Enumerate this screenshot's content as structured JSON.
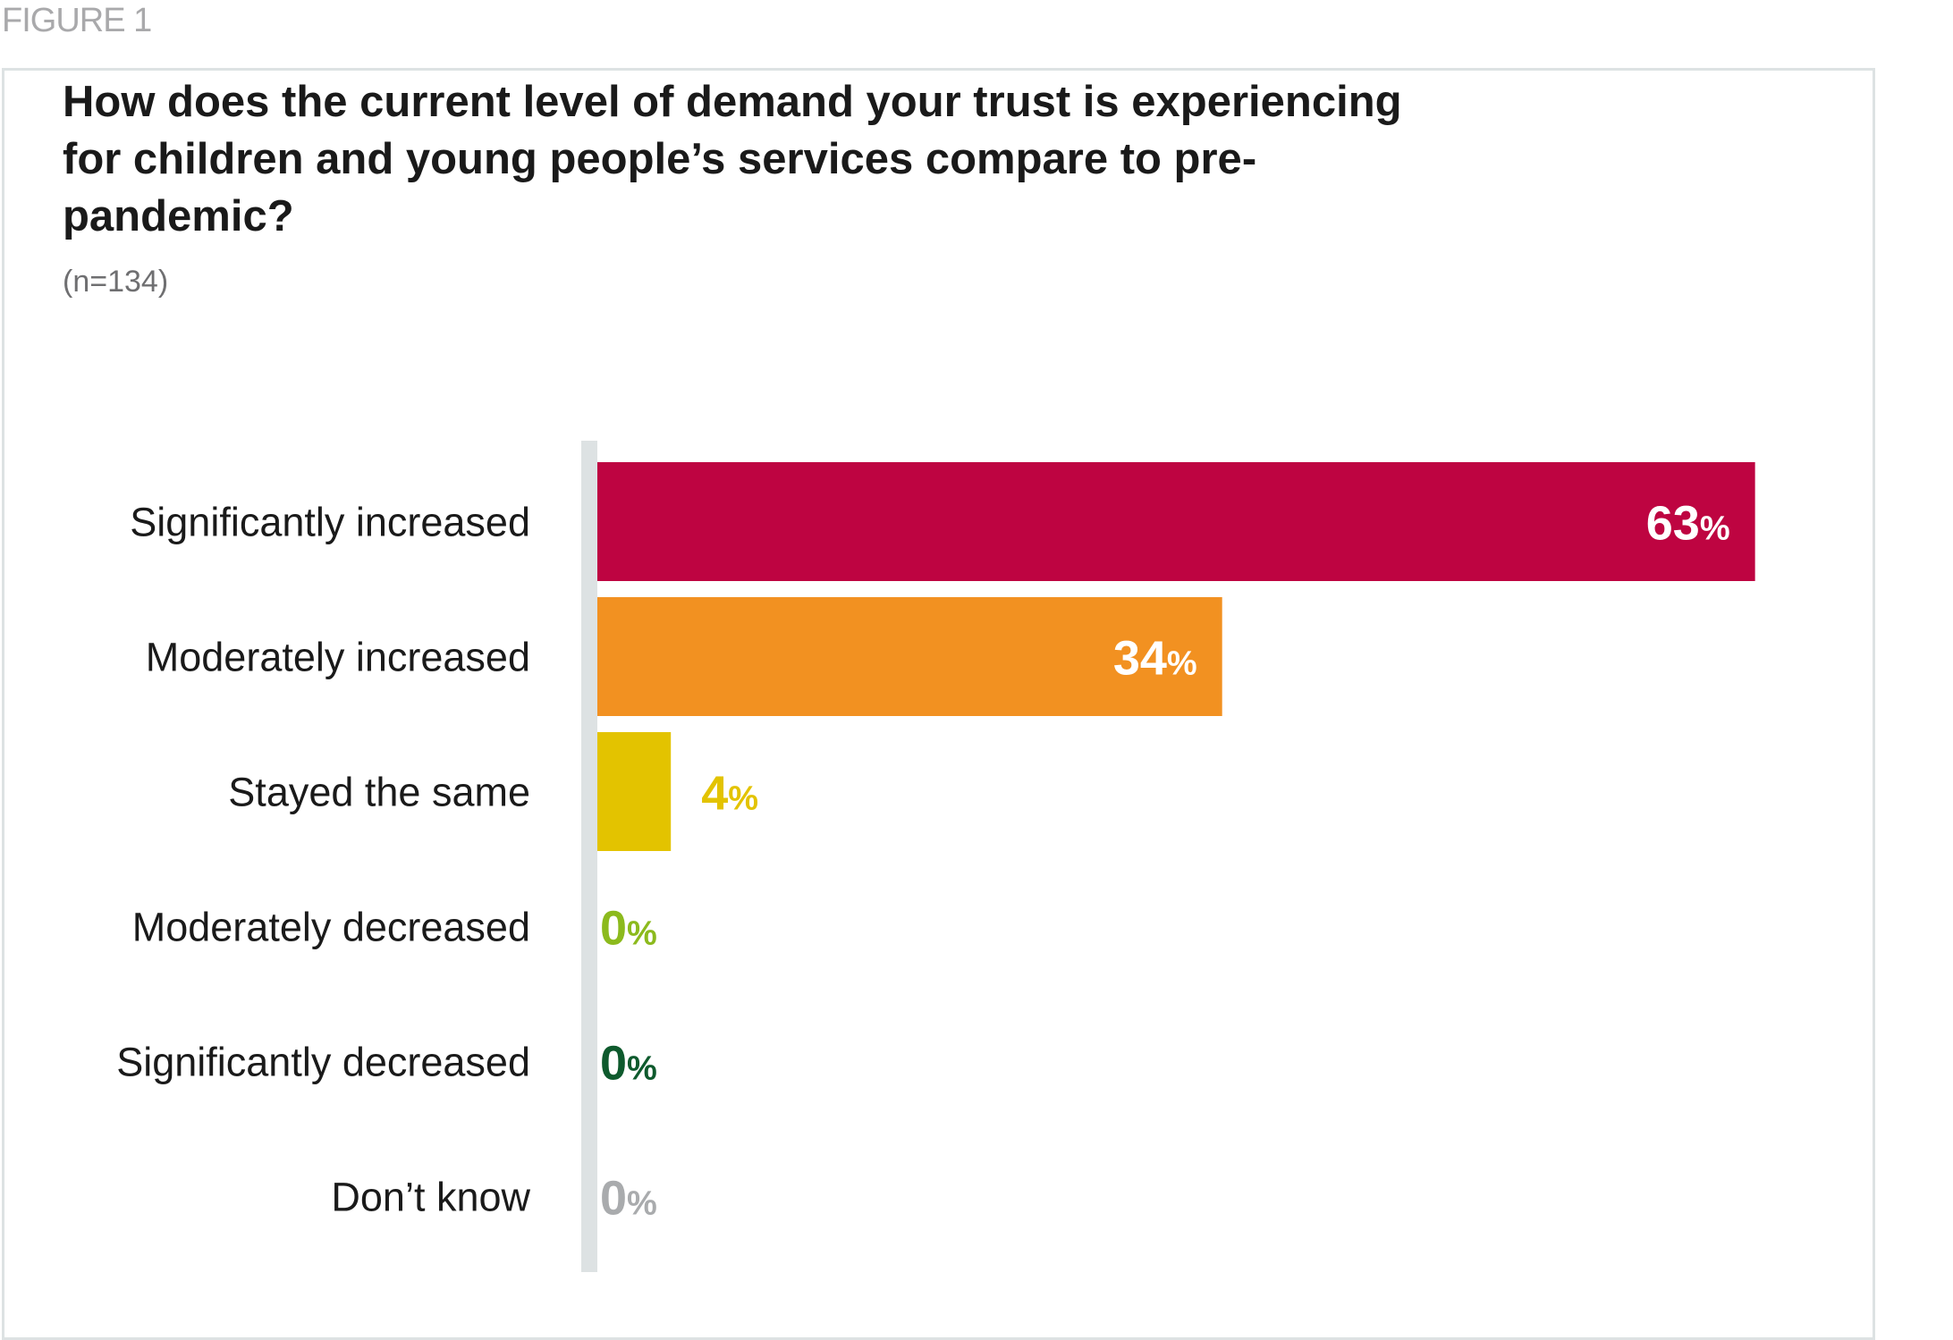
{
  "figure_label": "FIGURE 1",
  "chart_data": {
    "type": "bar",
    "orientation": "horizontal",
    "title": "How does the current level of demand your trust is experiencing for children and young people’s services compare to pre-pandemic?",
    "subtitle": "(n=134)",
    "categories": [
      "Significantly increased",
      "Moderately increased",
      "Stayed the same",
      "Moderately decreased",
      "Significantly decreased",
      "Don’t know"
    ],
    "values": [
      63,
      34,
      4,
      0,
      0,
      0
    ],
    "value_suffix": "%",
    "colors": [
      "#be0441",
      "#f29121",
      "#e3c300",
      "#8cba1d",
      "#0e5a2d",
      "#a9abad"
    ],
    "value_label_placement": [
      "inside",
      "inside",
      "outside",
      "outside",
      "outside",
      "outside"
    ],
    "axis_color": "#dde2e3",
    "xlim": [
      0,
      100
    ],
    "grid": false,
    "legend": "none"
  }
}
